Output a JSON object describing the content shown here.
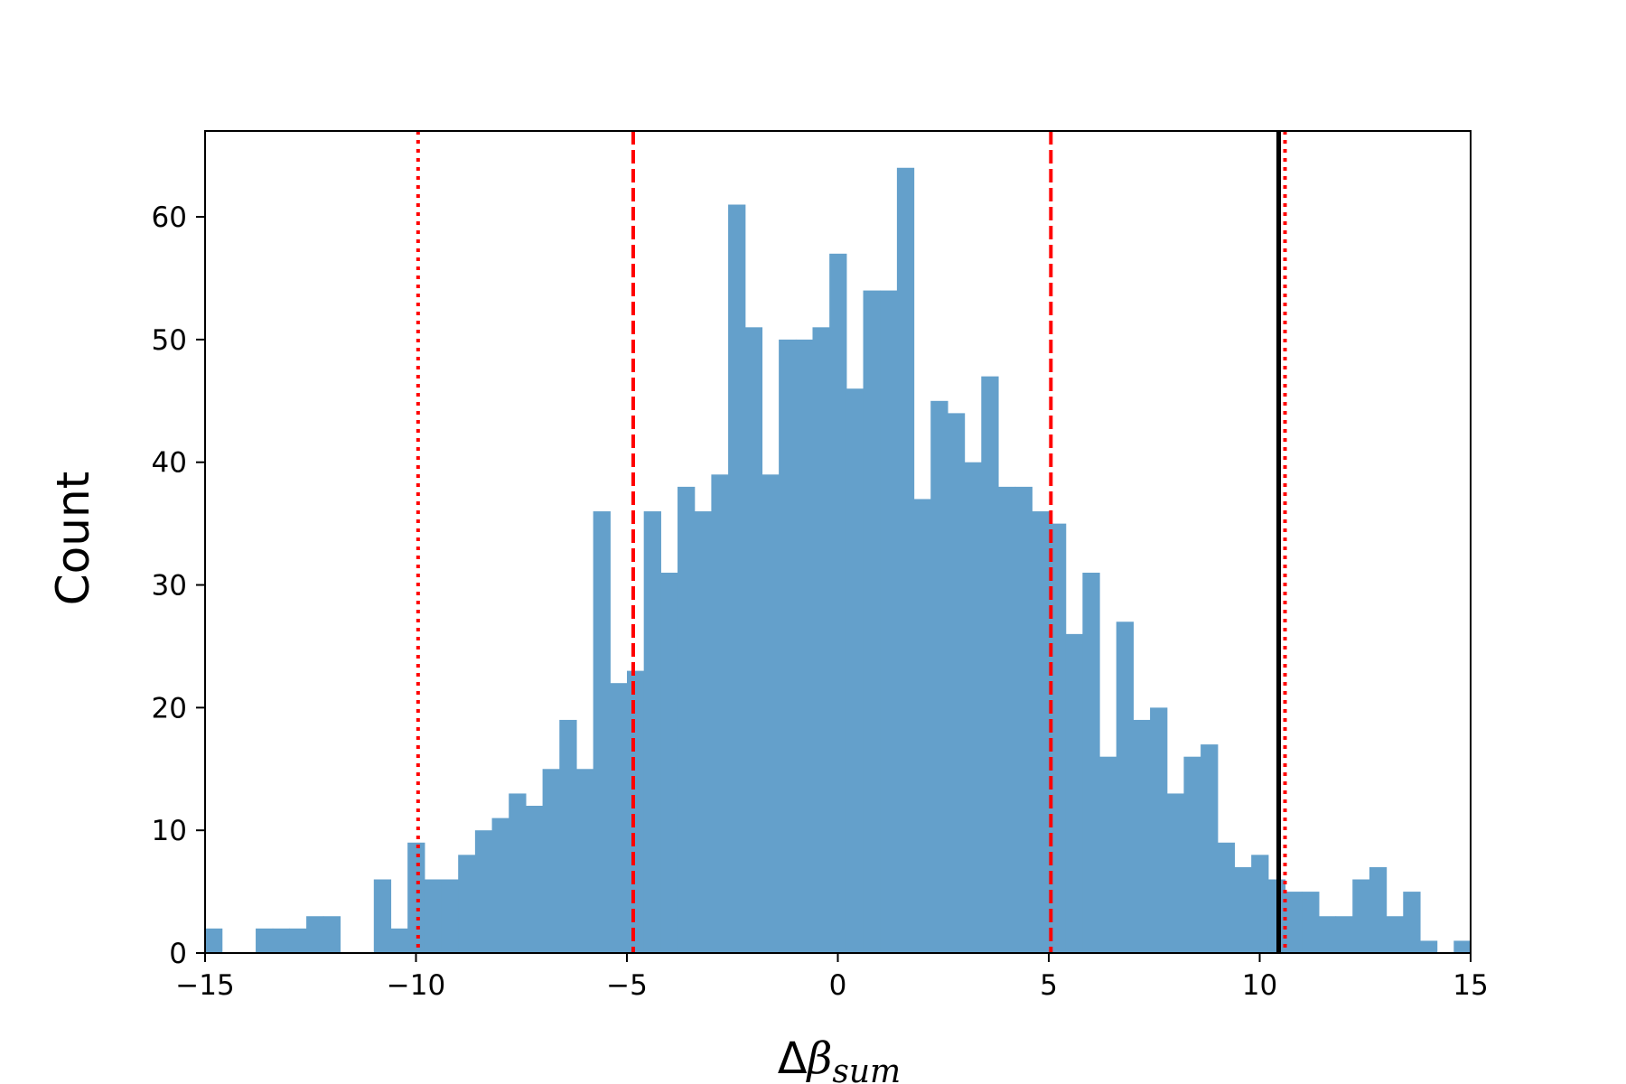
{
  "chart_data": {
    "type": "bar",
    "ylabel": "Count",
    "xlabel": {
      "delta": "Δ",
      "beta": "β",
      "subscript": "sum"
    },
    "xlim": [
      -15,
      15
    ],
    "ylim": [
      0,
      67
    ],
    "xticks": [
      -15,
      -10,
      -5,
      0,
      5,
      10,
      15
    ],
    "xtick_labels": [
      "−15",
      "−10",
      "−5",
      "0",
      "5",
      "10",
      "15"
    ],
    "yticks": [
      0,
      10,
      20,
      30,
      40,
      50,
      60
    ],
    "ytick_labels": [
      "0",
      "10",
      "20",
      "30",
      "40",
      "50",
      "60"
    ],
    "bar_color": "#64a0cb",
    "bins": {
      "start": -15.0,
      "width": 0.4,
      "counts": [
        2,
        0,
        0,
        2,
        2,
        2,
        3,
        3,
        0,
        0,
        6,
        2,
        9,
        6,
        6,
        8,
        10,
        11,
        13,
        12,
        15,
        19,
        15,
        36,
        22,
        23,
        36,
        31,
        38,
        36,
        39,
        61,
        51,
        39,
        50,
        50,
        51,
        57,
        46,
        54,
        54,
        64,
        37,
        45,
        44,
        40,
        47,
        38,
        38,
        36,
        35,
        26,
        31,
        16,
        27,
        19,
        20,
        13,
        16,
        17,
        9,
        7,
        8,
        6,
        5,
        5,
        3,
        3,
        6,
        7,
        3,
        5,
        1,
        0,
        1
      ]
    },
    "vlines": [
      {
        "x": -9.95,
        "style": "dotted",
        "color": "#ff0000"
      },
      {
        "x": -4.85,
        "style": "dashed",
        "color": "#ff0000"
      },
      {
        "x": 5.05,
        "style": "dashed",
        "color": "#ff0000"
      },
      {
        "x": 10.6,
        "style": "dotted",
        "color": "#ff0000"
      },
      {
        "x": 10.45,
        "style": "solid",
        "color": "#000000"
      }
    ]
  }
}
